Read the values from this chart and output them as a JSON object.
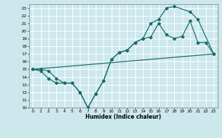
{
  "xlabel": "Humidex (Indice chaleur)",
  "bg_color": "#cce8ec",
  "grid_color": "#ffffff",
  "line_color": "#1a6b6b",
  "xlim": [
    -0.5,
    23.5
  ],
  "ylim": [
    10,
    23.5
  ],
  "xticks": [
    0,
    1,
    2,
    3,
    4,
    5,
    6,
    7,
    8,
    9,
    10,
    11,
    12,
    13,
    14,
    15,
    16,
    17,
    18,
    19,
    20,
    21,
    22,
    23
  ],
  "yticks": [
    10,
    11,
    12,
    13,
    14,
    15,
    16,
    17,
    18,
    19,
    20,
    21,
    22,
    23
  ],
  "line1_x": [
    0,
    1,
    2,
    3,
    4,
    5,
    6,
    7,
    8,
    9,
    10,
    11,
    12,
    13,
    14,
    15,
    16,
    17,
    18,
    19,
    20,
    21,
    22,
    23
  ],
  "line1_y": [
    15.0,
    15.0,
    14.8,
    13.8,
    13.2,
    13.2,
    12.0,
    10.0,
    11.8,
    13.5,
    16.3,
    17.2,
    17.5,
    18.5,
    19.0,
    19.2,
    21.0,
    19.5,
    19.0,
    19.3,
    21.3,
    18.5,
    18.5,
    17.0
  ],
  "line2_x": [
    0,
    1,
    2,
    3,
    4,
    5,
    6,
    7,
    8,
    9,
    10,
    11,
    12,
    13,
    14,
    15,
    16,
    17,
    18,
    20,
    21,
    23
  ],
  "line2_y": [
    15.0,
    14.8,
    13.8,
    13.2,
    13.2,
    13.2,
    12.0,
    10.0,
    11.8,
    13.5,
    16.3,
    17.2,
    17.5,
    18.5,
    19.0,
    21.0,
    21.5,
    23.0,
    23.2,
    22.5,
    21.5,
    17.0
  ],
  "line3_x": [
    0,
    23
  ],
  "line3_y": [
    15.0,
    17.0
  ]
}
